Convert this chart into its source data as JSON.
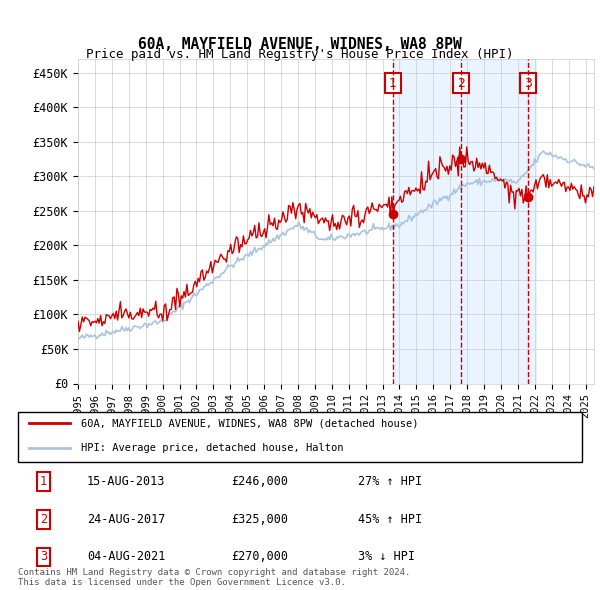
{
  "title1": "60A, MAYFIELD AVENUE, WIDNES, WA8 8PW",
  "title2": "Price paid vs. HM Land Registry's House Price Index (HPI)",
  "ylabel_ticks": [
    "£0",
    "£50K",
    "£100K",
    "£150K",
    "£200K",
    "£250K",
    "£300K",
    "£350K",
    "£400K",
    "£450K"
  ],
  "ytick_values": [
    0,
    50000,
    100000,
    150000,
    200000,
    250000,
    300000,
    350000,
    400000,
    450000
  ],
  "xlim_start": 1995.0,
  "xlim_end": 2025.5,
  "ylim": [
    0,
    470000
  ],
  "sale_dates": [
    2013.62,
    2017.64,
    2021.59
  ],
  "sale_prices": [
    246000,
    325000,
    270000
  ],
  "sale_labels": [
    "1",
    "2",
    "3"
  ],
  "legend_line1": "60A, MAYFIELD AVENUE, WIDNES, WA8 8PW (detached house)",
  "legend_line2": "HPI: Average price, detached house, Halton",
  "table_rows": [
    [
      "1",
      "15-AUG-2013",
      "£246,000",
      "27% ↑ HPI"
    ],
    [
      "2",
      "24-AUG-2017",
      "£325,000",
      "45% ↑ HPI"
    ],
    [
      "3",
      "04-AUG-2021",
      "£270,000",
      "3% ↓ HPI"
    ]
  ],
  "footer": "Contains HM Land Registry data © Crown copyright and database right 2024.\nThis data is licensed under the Open Government Licence v3.0.",
  "hpi_color": "#aac4e0",
  "sale_color": "#cc0000",
  "vline_color": "#cc0000",
  "shaded_color": "#ddeeff",
  "background_color": "#ffffff"
}
